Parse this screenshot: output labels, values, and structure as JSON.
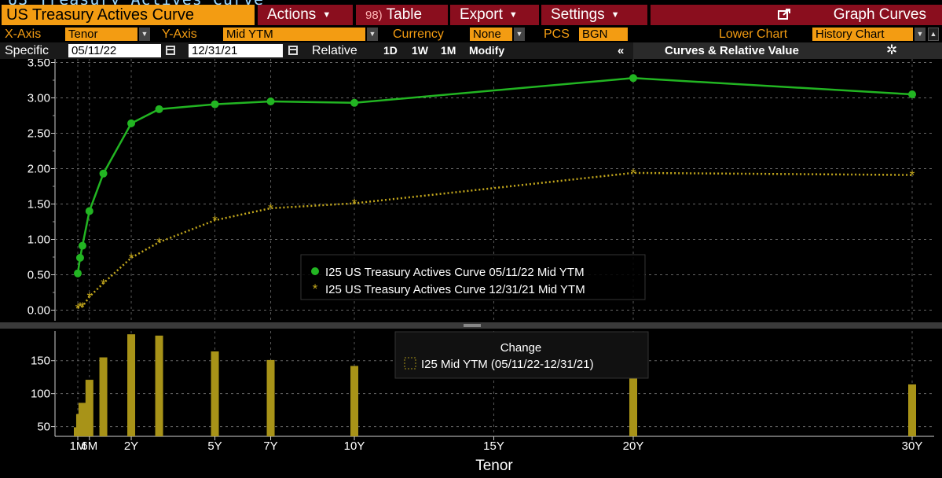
{
  "toolbar": {
    "title": "US Treasury Actives Curve",
    "actions": "Actions",
    "table_num": "98)",
    "table": "Table",
    "export": "Export",
    "settings": "Settings",
    "graph": "Graph Curves"
  },
  "controls": {
    "xaxis_label": "X-Axis",
    "xaxis_value": "Tenor",
    "yaxis_label": "Y-Axis",
    "yaxis_value": "Mid YTM",
    "currency_label": "Currency",
    "currency_value": "None",
    "pcs_label": "PCS",
    "pcs_value": "BGN",
    "lower_label": "Lower Chart",
    "lower_value": "History Chart"
  },
  "dates": {
    "specific_label": "Specific",
    "date1": "05/11/22",
    "date2": "12/31/21",
    "relative_label": "Relative",
    "b1d": "1D",
    "b1w": "1W",
    "b1m": "1M",
    "modify": "Modify",
    "collapse": "«",
    "panel": "Curves & Relative Value"
  },
  "colors": {
    "series1": "#22b522",
    "series2": "#c4a81c",
    "bars": "#a89318",
    "accent": "#f39c12",
    "menu": "#8a0e1e"
  },
  "chart_data": [
    {
      "type": "line",
      "x_ticks": [
        {
          "label": "1M",
          "x": 1
        },
        {
          "label": "6M",
          "x": 6
        },
        {
          "label": "2Y",
          "x": 24
        },
        {
          "label": "5Y",
          "x": 60
        },
        {
          "label": "7Y",
          "x": 84
        },
        {
          "label": "10Y",
          "x": 120
        },
        {
          "label": "15Y",
          "x": 180
        },
        {
          "label": "20Y",
          "x": 240
        },
        {
          "label": "30Y",
          "x": 360
        }
      ],
      "x_unit_note": "",
      "xlabel": "Tenor",
      "ylim": [
        -0.15,
        3.55
      ],
      "y_ticks": [
        0.0,
        0.5,
        1.0,
        1.5,
        2.0,
        2.5,
        3.0,
        3.5
      ],
      "grid": true,
      "legend_position": "center",
      "series": [
        {
          "name": "I25 US Treasury Actives Curve 05/11/22 Mid YTM",
          "marker": "circle",
          "style": "solid",
          "x": [
            1,
            2,
            3,
            6,
            12,
            24,
            36,
            60,
            84,
            120,
            240,
            360
          ],
          "y": [
            0.52,
            0.74,
            0.91,
            1.4,
            1.93,
            2.64,
            2.84,
            2.91,
            2.95,
            2.93,
            3.28,
            3.05
          ]
        },
        {
          "name": "I25 US Treasury Actives Curve 12/31/21 Mid YTM",
          "marker": "star",
          "style": "dotted",
          "x": [
            1,
            2,
            3,
            6,
            12,
            24,
            36,
            60,
            84,
            120,
            240,
            360
          ],
          "y": [
            0.03,
            0.05,
            0.05,
            0.19,
            0.38,
            0.74,
            0.96,
            1.27,
            1.44,
            1.51,
            1.94,
            1.91
          ]
        }
      ]
    },
    {
      "type": "bar",
      "title": "Change",
      "legend": "I25 Mid YTM (05/11/22-12/31/21)",
      "xlabel": "Tenor",
      "ylim": [
        40,
        195
      ],
      "y_ticks": [
        50,
        100,
        150
      ],
      "x": [
        1,
        2,
        3,
        6,
        12,
        24,
        36,
        60,
        84,
        120,
        240,
        360
      ],
      "values": [
        49,
        69,
        86,
        121,
        155,
        190,
        188,
        164,
        151,
        142,
        134,
        114
      ]
    }
  ]
}
